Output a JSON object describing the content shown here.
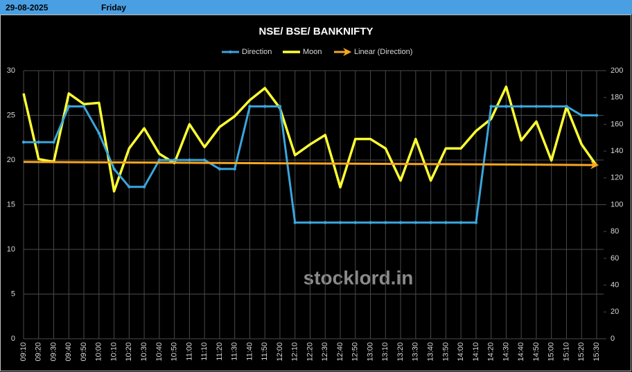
{
  "header": {
    "date": "29-08-2025",
    "day": "Friday"
  },
  "chart_data": {
    "type": "line",
    "title": "NSE/ BSE/ BANKNIFTY",
    "watermark": "stocklord.in",
    "categories": [
      "09:10",
      "09:20",
      "09:30",
      "09:40",
      "09:50",
      "10:00",
      "10:10",
      "10:20",
      "10:30",
      "10:40",
      "10:50",
      "11:00",
      "11:10",
      "11:20",
      "11:30",
      "11:40",
      "11:50",
      "12:00",
      "12:10",
      "12:20",
      "12:30",
      "12:40",
      "12:50",
      "13:00",
      "13:10",
      "13:20",
      "13:30",
      "13:40",
      "13:50",
      "14:00",
      "14:10",
      "14:20",
      "14:30",
      "14:40",
      "14:50",
      "15:00",
      "15:10",
      "15:20",
      "15:30"
    ],
    "series": [
      {
        "name": "Direction",
        "color": "#3aa6dd",
        "marker": true,
        "values": [
          22,
          22,
          22,
          26,
          26,
          23,
          19,
          17,
          17,
          20,
          20,
          20,
          20,
          19,
          19,
          26,
          26,
          26,
          13,
          13,
          13,
          13,
          13,
          13,
          13,
          13,
          13,
          13,
          13,
          13,
          13,
          26,
          26,
          26,
          26,
          26,
          26,
          25,
          25
        ]
      },
      {
        "name": "Moon",
        "color": "#ffff33",
        "axis": "y2",
        "marker": false,
        "values": [
          183,
          134,
          132,
          183,
          175,
          176,
          110,
          142,
          157,
          138,
          131,
          160,
          143,
          158,
          166,
          178,
          187,
          172,
          137,
          145,
          152,
          113,
          149,
          149,
          142,
          118,
          149,
          118,
          142,
          142,
          155,
          164,
          188,
          148,
          162,
          133,
          173,
          145,
          129
        ]
      }
    ],
    "trendline": {
      "name": "Linear (Direction)",
      "color": "#f5a623",
      "series": 0
    },
    "ylim": [
      0,
      30
    ],
    "yticks": [
      0,
      5,
      10,
      15,
      20,
      25,
      30
    ],
    "y2lim": [
      0,
      200
    ],
    "y2ticks": [
      0,
      20,
      40,
      60,
      80,
      100,
      120,
      140,
      160,
      180,
      200
    ],
    "grid": true
  }
}
